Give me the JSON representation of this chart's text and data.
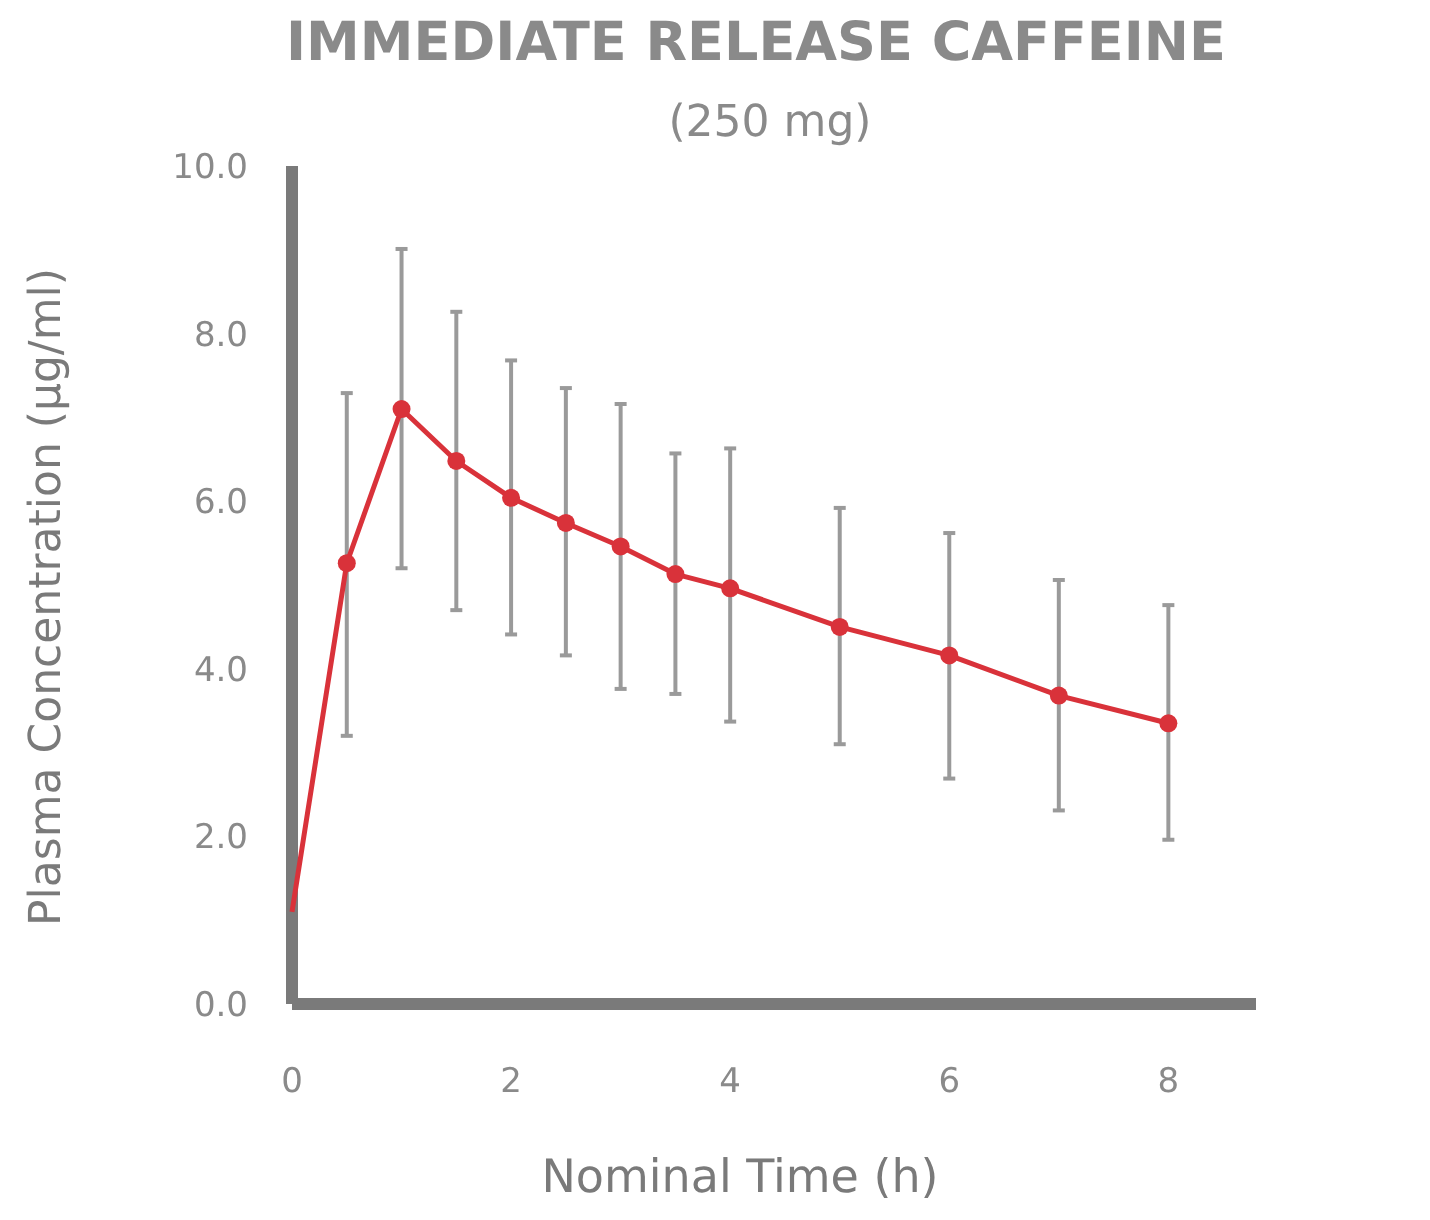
{
  "chart_data": {
    "type": "line",
    "title": "IMMEDIATE RELEASE CAFFEINE",
    "subtitle": "(250 mg)",
    "xlabel": "Nominal Time (h)",
    "ylabel": "Plasma Concentration (µg/ml)",
    "x": [
      0,
      0.5,
      1,
      1.5,
      2,
      2.5,
      3,
      3.5,
      4,
      5,
      6,
      7,
      8
    ],
    "series": [
      {
        "color": "#d9323a",
        "marker": "circle",
        "values": [
          1.1,
          5.26,
          7.1,
          6.48,
          6.04,
          5.74,
          5.46,
          5.13,
          4.96,
          4.5,
          4.16,
          3.68,
          3.35
        ],
        "errors": [
          null,
          [
            3.2,
            7.29
          ],
          [
            5.2,
            9.01
          ],
          [
            4.7,
            8.26
          ],
          [
            4.41,
            7.68
          ],
          [
            4.16,
            7.35
          ],
          [
            3.76,
            7.16
          ],
          [
            3.7,
            6.57
          ],
          [
            3.37,
            6.63
          ],
          [
            3.1,
            5.92
          ],
          [
            2.69,
            5.62
          ],
          [
            2.31,
            5.06
          ],
          [
            1.96,
            4.76
          ]
        ]
      }
    ],
    "xlim": [
      0,
      8.8
    ],
    "xticks": [
      0,
      2,
      4,
      6,
      8
    ],
    "ylim": [
      0,
      10
    ],
    "yticks": [
      {
        "value": 0,
        "label": "0.0"
      },
      {
        "value": 2,
        "label": "2.0"
      },
      {
        "value": 4,
        "label": "4.0"
      },
      {
        "value": 6,
        "label": "6.0"
      },
      {
        "value": 8,
        "label": "8.0"
      },
      {
        "value": 10,
        "label": "10.0"
      }
    ],
    "grid": false
  }
}
